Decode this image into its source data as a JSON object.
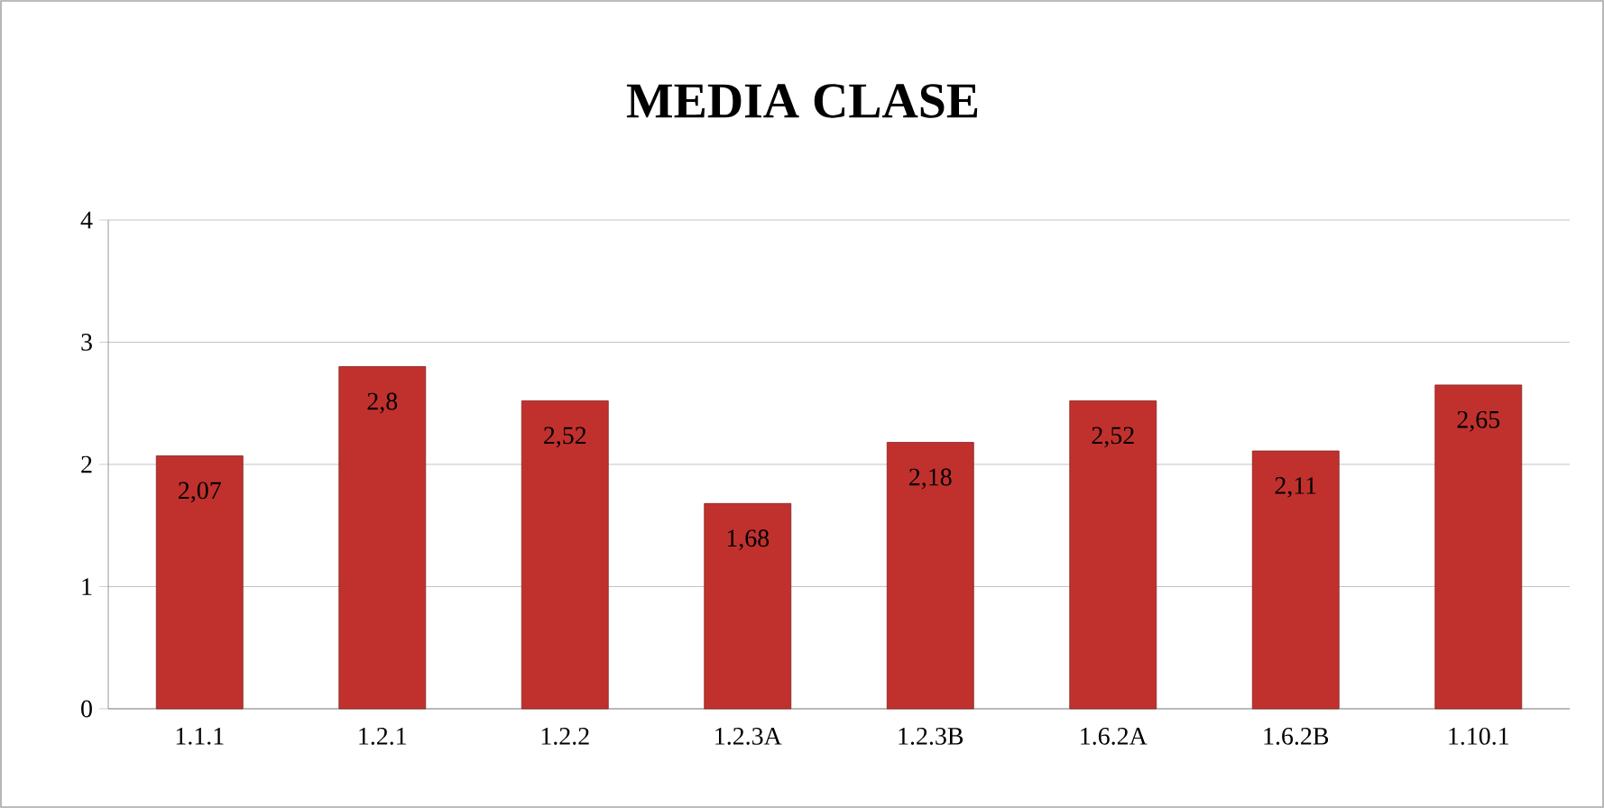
{
  "chart_data": {
    "type": "bar",
    "title": "MEDIA CLASE",
    "categories": [
      "1.1.1",
      "1.2.1",
      "1.2.2",
      "1.2.3A",
      "1.2.3B",
      "1.6.2A",
      "1.6.2B",
      "1.10.1"
    ],
    "values": [
      2.07,
      2.8,
      2.52,
      1.68,
      2.18,
      2.52,
      2.11,
      2.65
    ],
    "value_labels": [
      "2,07",
      "2,8",
      "2,52",
      "1,68",
      "2,18",
      "2,52",
      "2,11",
      "2,65"
    ],
    "color": "#c0312e",
    "ylim": [
      0,
      4
    ],
    "yticks": [
      0,
      1,
      2,
      3,
      4
    ],
    "grid": "y"
  }
}
